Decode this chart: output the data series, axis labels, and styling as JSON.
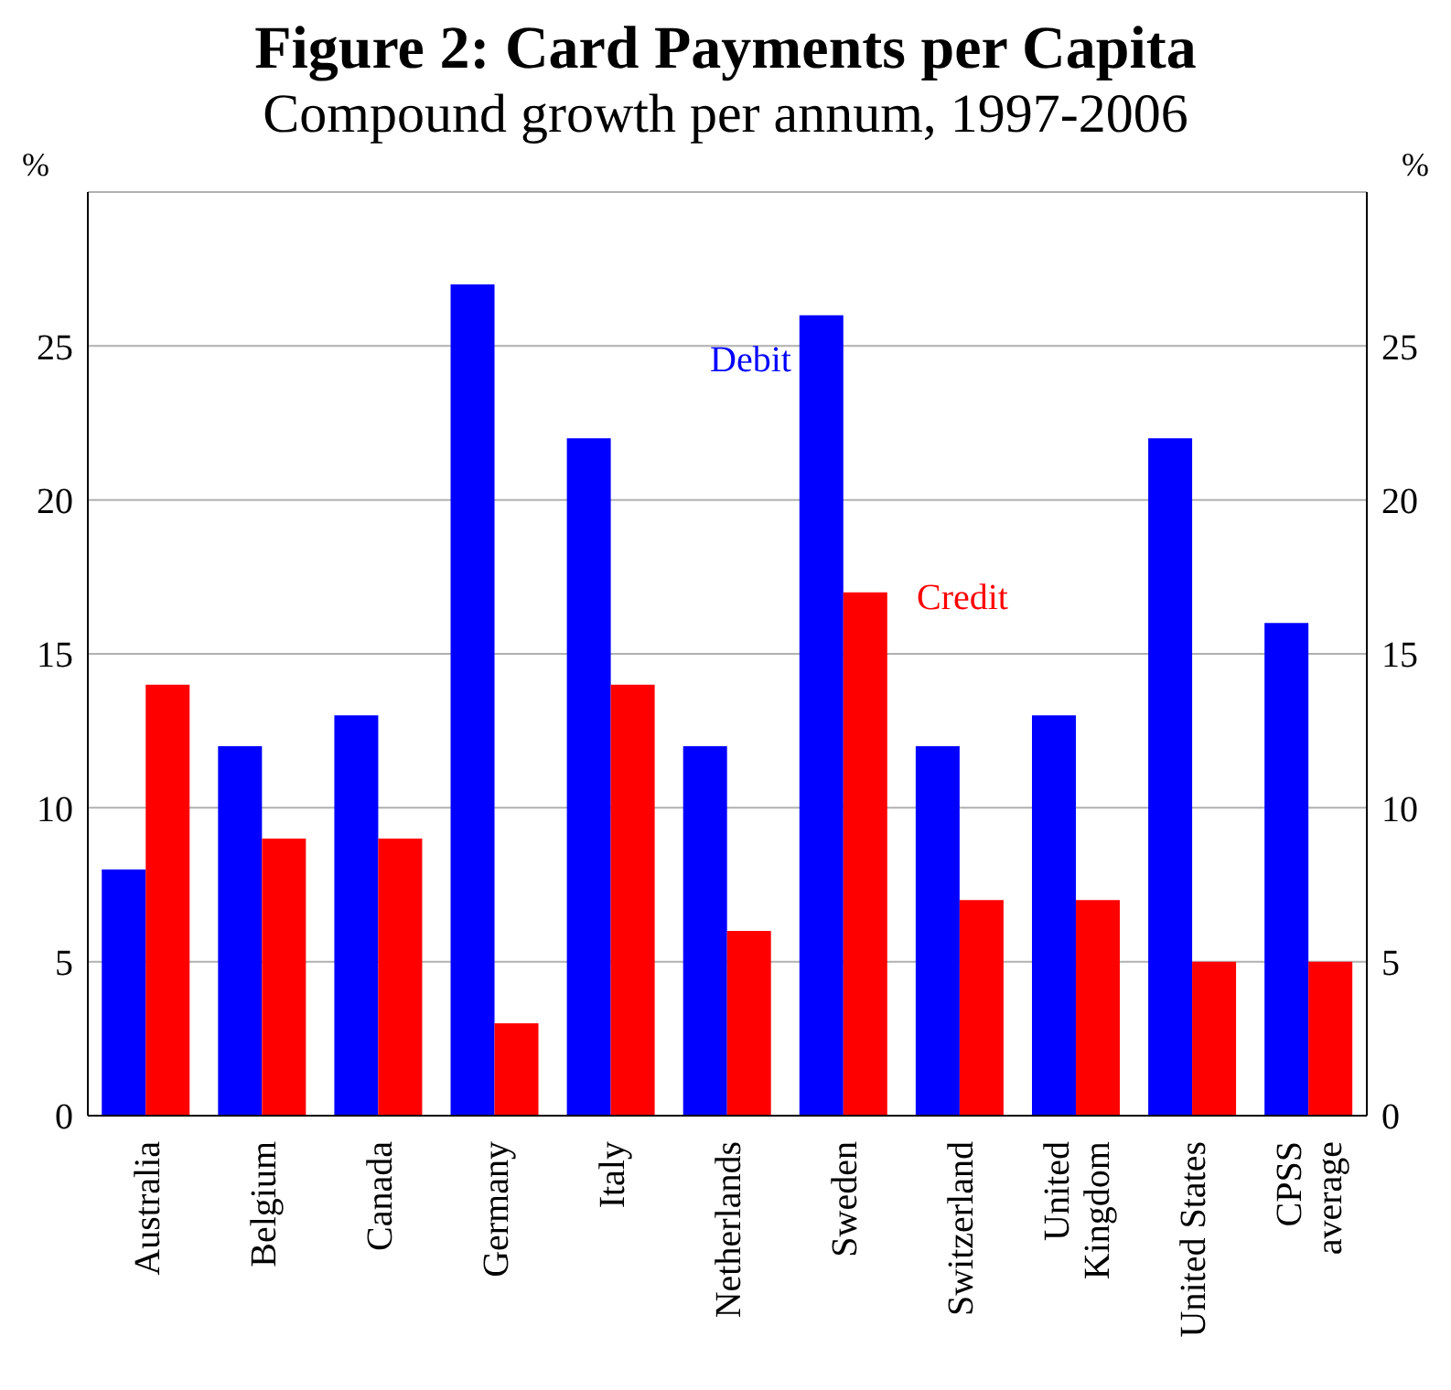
{
  "chart_data": {
    "type": "bar",
    "title": "Figure 2: Card Payments per Capita",
    "subtitle": "Compound growth per annum, 1997-2006",
    "ylabel": "%",
    "y2label": "%",
    "categories": [
      "Australia",
      "Belgium",
      "Canada",
      "Germany",
      "Italy",
      "Netherlands",
      "Sweden",
      "Switzerland",
      "United\nKingdom",
      "United States",
      "CPSS\naverage"
    ],
    "series": [
      {
        "name": "Debit",
        "color": "#0000ff",
        "values": [
          8,
          12,
          13,
          27,
          22,
          12,
          26,
          12,
          13,
          22,
          16
        ]
      },
      {
        "name": "Credit",
        "color": "#ff0000",
        "values": [
          14,
          9,
          9,
          3,
          14,
          6,
          17,
          7,
          7,
          5,
          5
        ]
      }
    ],
    "ylim": [
      0,
      30
    ],
    "yticks": [
      0,
      5,
      10,
      15,
      20,
      25
    ],
    "y2lim": [
      0,
      30
    ],
    "y2ticks": [
      0,
      5,
      10,
      15,
      20,
      25
    ],
    "grid": "y",
    "legend": false
  }
}
